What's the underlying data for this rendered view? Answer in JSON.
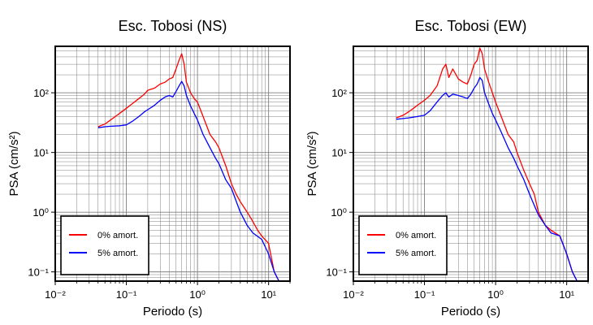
{
  "chart_data": [
    {
      "type": "line",
      "title": "Esc. Tobosi (NS)",
      "xlabel": "Periodo (s)",
      "ylabel": "PSA (cm/s²)",
      "xscale": "log",
      "yscale": "log",
      "xlim": [
        0.01,
        20
      ],
      "ylim": [
        0.07,
        600
      ],
      "grid": true,
      "legend_position": "bottom-left",
      "x_ticks": [
        "10⁻²",
        "10⁻¹",
        "10⁰",
        "10¹"
      ],
      "y_ticks": [
        "10⁻¹",
        "10⁰",
        "10¹",
        "10²"
      ],
      "series": [
        {
          "name": "0% amort.",
          "color": "#ff0000",
          "points": [
            [
              0.04,
              27
            ],
            [
              0.05,
              30
            ],
            [
              0.06,
              35
            ],
            [
              0.07,
              40
            ],
            [
              0.08,
              45
            ],
            [
              0.1,
              55
            ],
            [
              0.12,
              65
            ],
            [
              0.15,
              80
            ],
            [
              0.18,
              95
            ],
            [
              0.2,
              110
            ],
            [
              0.25,
              120
            ],
            [
              0.3,
              140
            ],
            [
              0.35,
              150
            ],
            [
              0.4,
              170
            ],
            [
              0.45,
              180
            ],
            [
              0.5,
              250
            ],
            [
              0.55,
              350
            ],
            [
              0.6,
              450
            ],
            [
              0.65,
              300
            ],
            [
              0.7,
              150
            ],
            [
              0.8,
              100
            ],
            [
              0.9,
              80
            ],
            [
              1.0,
              70
            ],
            [
              1.2,
              40
            ],
            [
              1.5,
              20
            ],
            [
              1.8,
              15
            ],
            [
              2.0,
              12
            ],
            [
              2.5,
              6
            ],
            [
              3.0,
              3
            ],
            [
              3.5,
              2
            ],
            [
              4.0,
              1.5
            ],
            [
              5.0,
              1.0
            ],
            [
              6.0,
              0.7
            ],
            [
              7.0,
              0.5
            ],
            [
              8.0,
              0.4
            ],
            [
              10.0,
              0.3
            ],
            [
              12.0,
              0.1
            ],
            [
              14.0,
              0.07
            ]
          ]
        },
        {
          "name": "5% amort.",
          "color": "#0000ff",
          "points": [
            [
              0.04,
              26
            ],
            [
              0.05,
              27
            ],
            [
              0.06,
              27.5
            ],
            [
              0.08,
              28
            ],
            [
              0.1,
              29
            ],
            [
              0.12,
              33
            ],
            [
              0.15,
              40
            ],
            [
              0.18,
              48
            ],
            [
              0.2,
              52
            ],
            [
              0.25,
              62
            ],
            [
              0.3,
              75
            ],
            [
              0.35,
              85
            ],
            [
              0.4,
              90
            ],
            [
              0.45,
              85
            ],
            [
              0.5,
              105
            ],
            [
              0.55,
              130
            ],
            [
              0.6,
              155
            ],
            [
              0.65,
              130
            ],
            [
              0.7,
              90
            ],
            [
              0.8,
              60
            ],
            [
              0.9,
              45
            ],
            [
              1.0,
              35
            ],
            [
              1.2,
              20
            ],
            [
              1.5,
              12
            ],
            [
              1.8,
              8
            ],
            [
              2.0,
              6.5
            ],
            [
              2.5,
              3.5
            ],
            [
              3.0,
              2.5
            ],
            [
              4.0,
              1.0
            ],
            [
              5.0,
              0.6
            ],
            [
              6.0,
              0.45
            ],
            [
              8.0,
              0.35
            ],
            [
              10.0,
              0.2
            ],
            [
              12.0,
              0.1
            ],
            [
              14.0,
              0.07
            ]
          ]
        }
      ]
    },
    {
      "type": "line",
      "title": "Esc. Tobosi (EW)",
      "xlabel": "Periodo (s)",
      "ylabel": "PSA (cm/s²)",
      "xscale": "log",
      "yscale": "log",
      "xlim": [
        0.01,
        20
      ],
      "ylim": [
        0.07,
        600
      ],
      "grid": true,
      "legend_position": "bottom-left",
      "x_ticks": [
        "10⁻²",
        "10⁻¹",
        "10⁰",
        "10¹"
      ],
      "y_ticks": [
        "10⁻¹",
        "10⁰",
        "10¹",
        "10²"
      ],
      "series": [
        {
          "name": "0% amort.",
          "color": "#ff0000",
          "points": [
            [
              0.04,
              38
            ],
            [
              0.05,
              42
            ],
            [
              0.06,
              48
            ],
            [
              0.07,
              55
            ],
            [
              0.08,
              62
            ],
            [
              0.1,
              75
            ],
            [
              0.12,
              90
            ],
            [
              0.15,
              130
            ],
            [
              0.18,
              250
            ],
            [
              0.2,
              300
            ],
            [
              0.22,
              180
            ],
            [
              0.25,
              250
            ],
            [
              0.3,
              170
            ],
            [
              0.35,
              150
            ],
            [
              0.4,
              140
            ],
            [
              0.45,
              200
            ],
            [
              0.5,
              300
            ],
            [
              0.55,
              350
            ],
            [
              0.6,
              560
            ],
            [
              0.65,
              450
            ],
            [
              0.7,
              250
            ],
            [
              0.8,
              150
            ],
            [
              0.9,
              100
            ],
            [
              1.0,
              70
            ],
            [
              1.2,
              40
            ],
            [
              1.5,
              20
            ],
            [
              1.8,
              15
            ],
            [
              2.0,
              10
            ],
            [
              2.5,
              5
            ],
            [
              3.0,
              3
            ],
            [
              3.5,
              2
            ],
            [
              4.0,
              1.0
            ],
            [
              5.0,
              0.6
            ],
            [
              6.0,
              0.5
            ],
            [
              8.0,
              0.4
            ],
            [
              10.0,
              0.2
            ],
            [
              12.0,
              0.1
            ],
            [
              14.0,
              0.07
            ]
          ]
        },
        {
          "name": "5% amort.",
          "color": "#0000ff",
          "points": [
            [
              0.04,
              36
            ],
            [
              0.05,
              37
            ],
            [
              0.06,
              38
            ],
            [
              0.08,
              40
            ],
            [
              0.1,
              42
            ],
            [
              0.12,
              50
            ],
            [
              0.15,
              70
            ],
            [
              0.18,
              90
            ],
            [
              0.2,
              100
            ],
            [
              0.22,
              85
            ],
            [
              0.25,
              95
            ],
            [
              0.3,
              90
            ],
            [
              0.35,
              85
            ],
            [
              0.4,
              80
            ],
            [
              0.45,
              95
            ],
            [
              0.5,
              120
            ],
            [
              0.55,
              140
            ],
            [
              0.6,
              180
            ],
            [
              0.65,
              160
            ],
            [
              0.7,
              100
            ],
            [
              0.8,
              65
            ],
            [
              0.9,
              45
            ],
            [
              1.0,
              35
            ],
            [
              1.2,
              22
            ],
            [
              1.5,
              12
            ],
            [
              1.8,
              8
            ],
            [
              2.0,
              6
            ],
            [
              2.5,
              3.5
            ],
            [
              3.0,
              2.0
            ],
            [
              3.5,
              1.3
            ],
            [
              4.0,
              0.9
            ],
            [
              5.0,
              0.6
            ],
            [
              6.0,
              0.45
            ],
            [
              8.0,
              0.4
            ],
            [
              10.0,
              0.2
            ],
            [
              12.0,
              0.1
            ],
            [
              14.0,
              0.07
            ]
          ]
        }
      ]
    }
  ]
}
